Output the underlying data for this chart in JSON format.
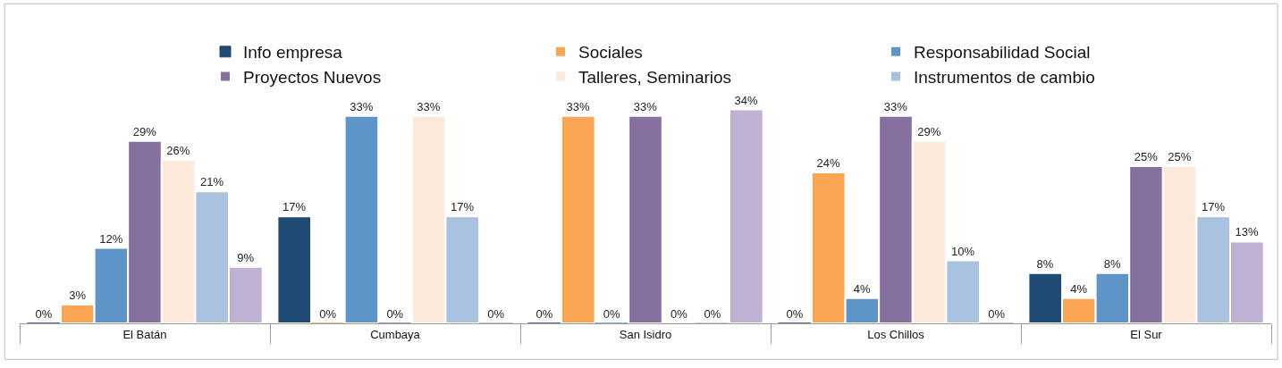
{
  "chart_data": {
    "type": "bar",
    "categories": [
      "El Batán",
      "Cumbaya",
      "San Isidro",
      "Los Chillos",
      "El Sur"
    ],
    "series": [
      {
        "name": "Info empresa",
        "color": "#1f4a73",
        "values": [
          0,
          17,
          0,
          0,
          8
        ],
        "value_labels": [
          "0%",
          "17%",
          "0%",
          "0%",
          "8%"
        ]
      },
      {
        "name": "Sociales",
        "color": "#f9a553",
        "values": [
          3,
          0,
          33,
          24,
          4
        ],
        "value_labels": [
          "3%",
          "0%",
          "33%",
          "24%",
          "4%"
        ]
      },
      {
        "name": "Responsabilidad Social",
        "color": "#5d95c8",
        "values": [
          12,
          33,
          0,
          4,
          8
        ],
        "value_labels": [
          "12%",
          "33%",
          "0%",
          "4%",
          "8%"
        ]
      },
      {
        "name": "Proyectos Nuevos",
        "color": "#8570a0",
        "values": [
          29,
          0,
          33,
          33,
          25
        ],
        "value_labels": [
          "29%",
          "0%",
          "33%",
          "33%",
          "25%"
        ]
      },
      {
        "name": "Talleres, Seminarios",
        "color": "#fde9d9",
        "values": [
          26,
          33,
          0,
          29,
          25
        ],
        "value_labels": [
          "26%",
          "33%",
          "0%",
          "29%",
          "25%"
        ]
      },
      {
        "name": "Instrumentos de cambio",
        "color": "#a7c1df",
        "values": [
          21,
          17,
          0,
          10,
          17
        ],
        "value_labels": [
          "21%",
          "17%",
          "0%",
          "10%",
          "17%"
        ]
      },
      {
        "color": "#bfb1d4",
        "values": [
          9,
          0,
          34,
          0,
          13
        ],
        "value_labels": [
          "9%",
          "0%",
          "34%",
          "0%",
          "13%"
        ]
      }
    ],
    "legend": "top"
  }
}
